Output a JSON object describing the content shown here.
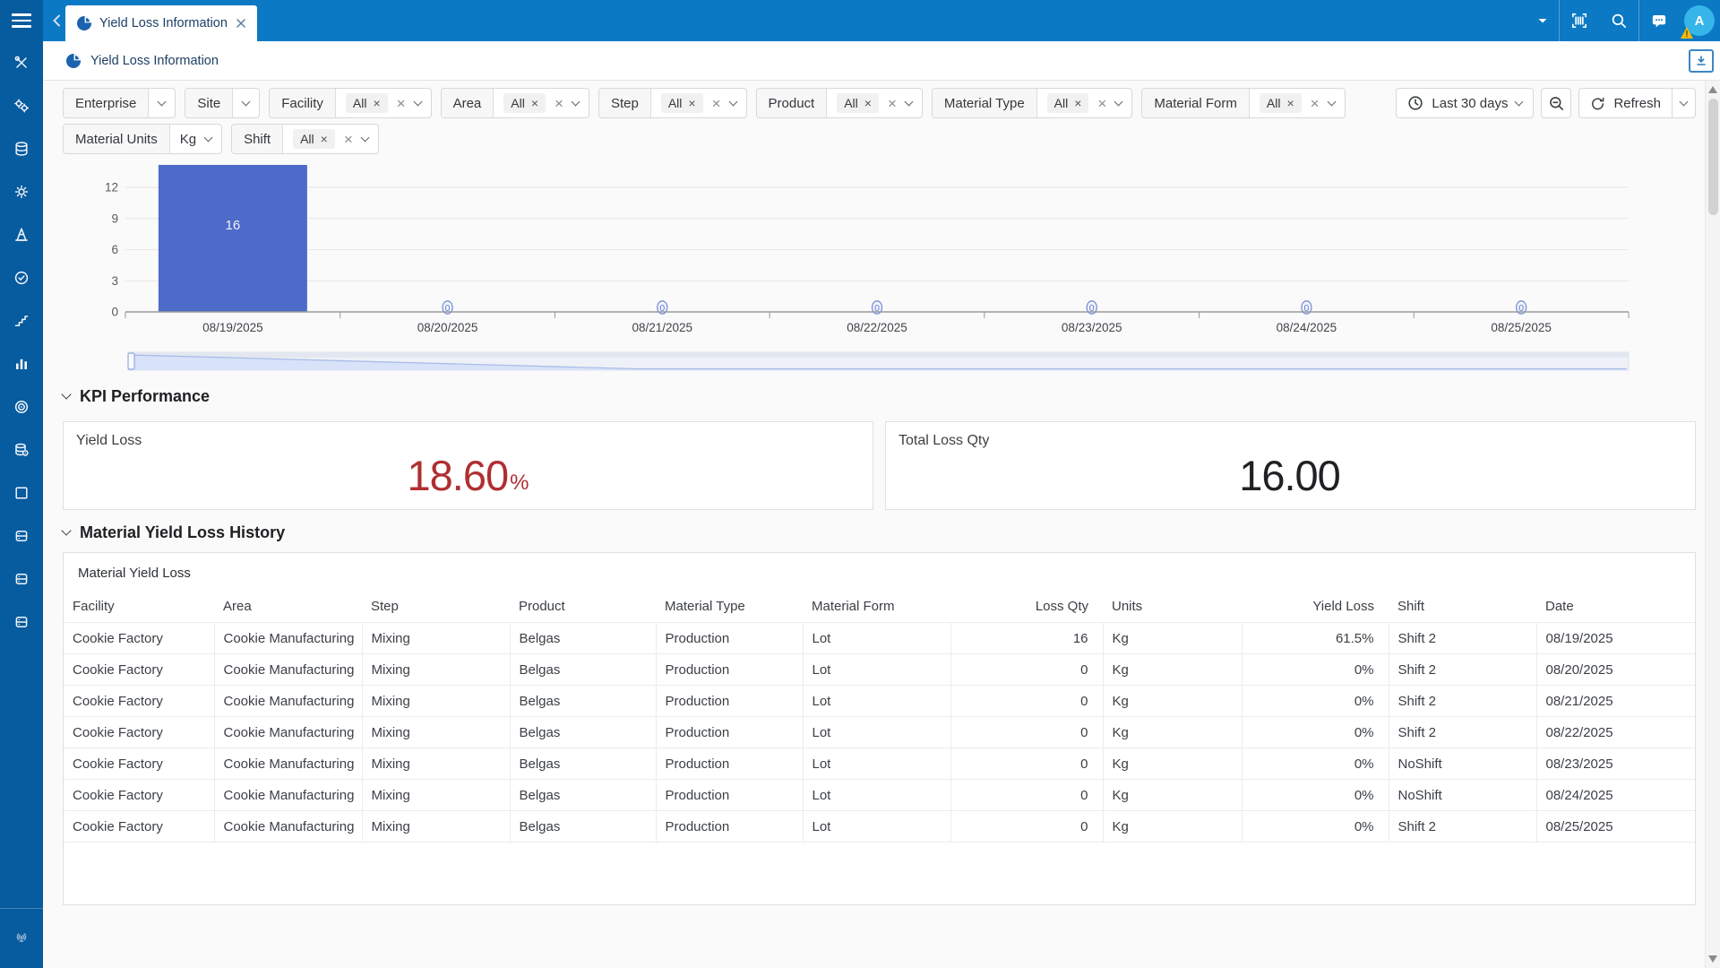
{
  "colors": {
    "topbar": "#0b79c4",
    "sidebar": "#075b9f",
    "bar": "#4d6bc8",
    "kpi_red": "#b02e31",
    "kpi_dark": "#202124",
    "avatar_bg": "#35b5ea"
  },
  "topbar": {
    "tab_title": "Yield Loss Information",
    "avatar_letter": "A"
  },
  "breadcrumb": {
    "title": "Yield Loss Information"
  },
  "sidebar": {
    "icons": [
      "crossed-tools",
      "gears",
      "database",
      "gear-sync",
      "traffic-cone",
      "check-circle",
      "workflow-steps",
      "bar-chart",
      "target",
      "database-view",
      "checkbox-square",
      "server",
      "server",
      "server"
    ],
    "bottom_icon": "antenna"
  },
  "filters": {
    "row1": [
      {
        "label": "Enterprise",
        "value": "",
        "clearable": false
      },
      {
        "label": "Site",
        "value": "",
        "clearable": false
      },
      {
        "label": "Facility",
        "value": "All",
        "clearable": true
      },
      {
        "label": "Area",
        "value": "All",
        "clearable": true
      },
      {
        "label": "Step",
        "value": "All",
        "clearable": true
      },
      {
        "label": "Product",
        "value": "All",
        "clearable": true
      },
      {
        "label": "Material Type",
        "value": "All",
        "clearable": true
      },
      {
        "label": "Material Form",
        "value": "All",
        "clearable": true
      }
    ],
    "row2": [
      {
        "label": "Material Units",
        "value": "Kg",
        "clearable": false
      },
      {
        "label": "Shift",
        "value": "All",
        "clearable": true
      }
    ]
  },
  "toolbar": {
    "date_range_label": "Last 30 days",
    "refresh_label": "Refresh"
  },
  "chart_data": {
    "type": "bar",
    "title": "",
    "categories": [
      "08/19/2025",
      "08/20/2025",
      "08/21/2025",
      "08/22/2025",
      "08/23/2025",
      "08/24/2025",
      "08/25/2025"
    ],
    "values": [
      16,
      0,
      0,
      0,
      0,
      0,
      0
    ],
    "bar_labels": [
      "16",
      "0",
      "0",
      "0",
      "0",
      "0",
      "0"
    ],
    "xlabel": "",
    "ylabel": "",
    "ylim": [
      0,
      12
    ],
    "yticks": [
      0,
      3,
      6,
      9,
      12
    ],
    "grid": true,
    "legend": "none",
    "has_navigator": true,
    "bar_color": "#4d6bc8"
  },
  "kpi_section": {
    "title": "KPI Performance",
    "cards": [
      {
        "label": "Yield Loss",
        "value": "18.60",
        "suffix": "%"
      },
      {
        "label": "Total Loss Qty",
        "value": "16.00",
        "suffix": ""
      }
    ]
  },
  "history_section": {
    "title": "Material Yield Loss History",
    "card_title": "Material Yield Loss",
    "columns": [
      {
        "label": "Facility",
        "align": "left"
      },
      {
        "label": "Area",
        "align": "left"
      },
      {
        "label": "Step",
        "align": "left"
      },
      {
        "label": "Product",
        "align": "left"
      },
      {
        "label": "Material Type",
        "align": "left"
      },
      {
        "label": "Material Form",
        "align": "left"
      },
      {
        "label": "Loss Qty",
        "align": "right"
      },
      {
        "label": "Units",
        "align": "left"
      },
      {
        "label": "Yield Loss",
        "align": "right"
      },
      {
        "label": "Shift",
        "align": "left"
      },
      {
        "label": "Date",
        "align": "left"
      }
    ],
    "rows": [
      [
        "Cookie Factory",
        "Cookie Manufacturing",
        "Mixing",
        "Belgas",
        "Production",
        "Lot",
        "16",
        "Kg",
        "61.5%",
        "Shift 2",
        "08/19/2025"
      ],
      [
        "Cookie Factory",
        "Cookie Manufacturing",
        "Mixing",
        "Belgas",
        "Production",
        "Lot",
        "0",
        "Kg",
        "0%",
        "Shift 2",
        "08/20/2025"
      ],
      [
        "Cookie Factory",
        "Cookie Manufacturing",
        "Mixing",
        "Belgas",
        "Production",
        "Lot",
        "0",
        "Kg",
        "0%",
        "Shift 2",
        "08/21/2025"
      ],
      [
        "Cookie Factory",
        "Cookie Manufacturing",
        "Mixing",
        "Belgas",
        "Production",
        "Lot",
        "0",
        "Kg",
        "0%",
        "Shift 2",
        "08/22/2025"
      ],
      [
        "Cookie Factory",
        "Cookie Manufacturing",
        "Mixing",
        "Belgas",
        "Production",
        "Lot",
        "0",
        "Kg",
        "0%",
        "NoShift",
        "08/23/2025"
      ],
      [
        "Cookie Factory",
        "Cookie Manufacturing",
        "Mixing",
        "Belgas",
        "Production",
        "Lot",
        "0",
        "Kg",
        "0%",
        "NoShift",
        "08/24/2025"
      ],
      [
        "Cookie Factory",
        "Cookie Manufacturing",
        "Mixing",
        "Belgas",
        "Production",
        "Lot",
        "0",
        "Kg",
        "0%",
        "Shift 2",
        "08/25/2025"
      ]
    ]
  }
}
